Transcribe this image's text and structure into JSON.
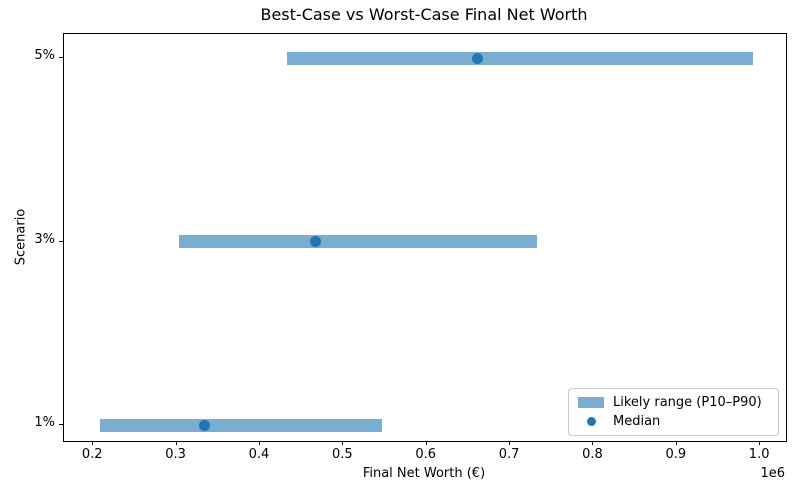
{
  "chart_data": {
    "type": "bar",
    "orientation": "horizontal",
    "title": "Best-Case vs Worst-Case Final Net Worth",
    "xlabel": "Final Net Worth (€)",
    "ylabel": "Scenario",
    "categories": [
      "1%",
      "3%",
      "5%"
    ],
    "series": [
      {
        "name": "Likely range (P10–P90)",
        "type": "range",
        "low": [
          208000,
          303000,
          433000
        ],
        "high": [
          547000,
          732000,
          992000
        ]
      },
      {
        "name": "Median",
        "type": "point",
        "values": [
          333000,
          467000,
          661000
        ]
      }
    ],
    "xlim": [
      165000,
      1031000
    ],
    "x_ticks": [
      200000,
      300000,
      400000,
      500000,
      600000,
      700000,
      800000,
      900000,
      1000000
    ],
    "x_tick_labels": [
      "0.2",
      "0.3",
      "0.4",
      "0.5",
      "0.6",
      "0.7",
      "0.8",
      "0.9",
      "1.0"
    ],
    "x_offset_label": "1e6",
    "grid": false,
    "legend_position": "lower right",
    "colors": {
      "range_fill": "#79add2",
      "median": "#1f77b4",
      "spine": "#000000",
      "legend_border": "#c8c8c8"
    }
  }
}
